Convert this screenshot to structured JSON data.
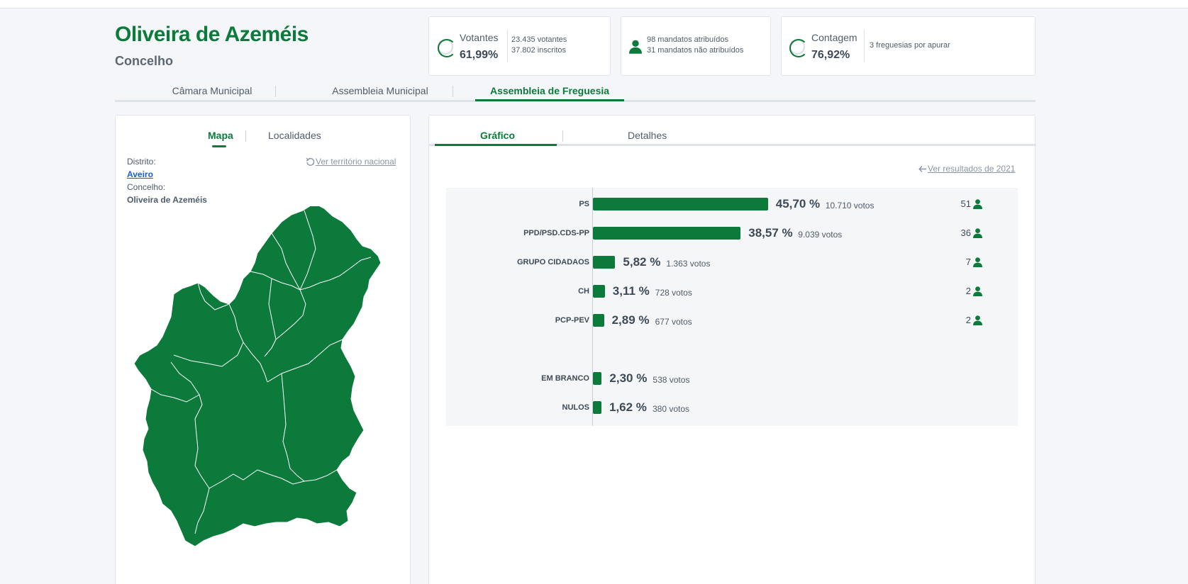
{
  "header": {
    "title": "Oliveira de Azeméis",
    "subtitle": "Concelho"
  },
  "stats": {
    "votantes": {
      "label": "Votantes",
      "value": "61,99%",
      "line1": "23.435 votantes",
      "line2": "37.802 inscritos"
    },
    "mandatos": {
      "line1": "98 mandatos atribuídos",
      "line2": "31 mandatos não atribuídos"
    },
    "contagem": {
      "label": "Contagem",
      "value": "76,92%",
      "line1": "3 freguesias por apurar"
    }
  },
  "tabs": [
    {
      "label": "Câmara Municipal"
    },
    {
      "label": "Assembleia Municipal"
    },
    {
      "label": "Assembleia de Freguesia"
    }
  ],
  "left_panel": {
    "tabs": [
      {
        "label": "Mapa"
      },
      {
        "label": "Localidades"
      }
    ],
    "distrito_label": "Distrito:",
    "distrito_value": "Aveiro",
    "concelho_label": "Concelho:",
    "concelho_value": "Oliveira de Azeméis",
    "national_link": "Ver território nacional"
  },
  "right_panel": {
    "tabs": [
      {
        "label": "Gráfico"
      },
      {
        "label": "Detalhes"
      }
    ],
    "results_link": "Ver resultados de 2021"
  },
  "colors": {
    "brand": "#0b7a3b",
    "text": "#3d4a57",
    "link": "#1a5fd0"
  },
  "chart_data": {
    "type": "bar",
    "orientation": "horizontal",
    "categories": [
      "PS",
      "PPD/PSD.CDS-PP",
      "GRUPO CIDADAOS",
      "CH",
      "PCP-PEV",
      "EM BRANCO",
      "NULOS"
    ],
    "values": [
      45.7,
      38.57,
      5.82,
      3.11,
      2.89,
      2.3,
      1.62
    ],
    "value_labels": [
      "45,70 %",
      "38,57 %",
      "5,82 %",
      "3,11 %",
      "2,89 %",
      "2,30 %",
      "1,62 %"
    ],
    "votes": [
      "10.710 votos",
      "9.039 votos",
      "1.363 votos",
      "728 votos",
      "677 votos",
      "538 votos",
      "380 votos"
    ],
    "mandates": [
      "51",
      "36",
      "7",
      "2",
      "2",
      "",
      ""
    ]
  }
}
